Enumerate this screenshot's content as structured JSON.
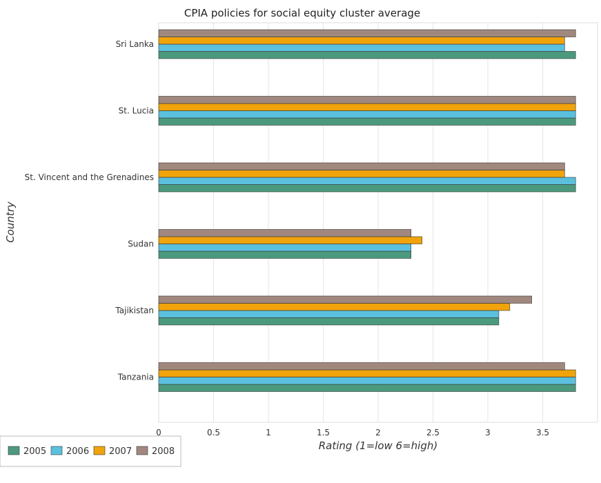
{
  "chart_data": {
    "type": "bar",
    "orientation": "horizontal",
    "title": "CPIA policies for social equity cluster average",
    "xlabel": "Rating (1=low 6=high)",
    "ylabel": "Country",
    "xlim": [
      0,
      4.0
    ],
    "xticks": [
      "0",
      "0.5",
      "1",
      "1.5",
      "2",
      "2.5",
      "3",
      "3.5"
    ],
    "categories": [
      "Sri Lanka",
      "St. Lucia",
      "St. Vincent and the Grenadines",
      "Sudan",
      "Tajikistan",
      "Tanzania"
    ],
    "series": [
      {
        "name": "2005",
        "color": "#4c9a7e",
        "values": [
          3.8,
          3.8,
          3.8,
          2.3,
          3.1,
          3.8
        ]
      },
      {
        "name": "2006",
        "color": "#5bc0de",
        "values": [
          3.7,
          3.8,
          3.8,
          2.3,
          3.1,
          3.8
        ]
      },
      {
        "name": "2007",
        "color": "#f0a30a",
        "values": [
          3.7,
          3.8,
          3.7,
          2.4,
          3.2,
          3.8
        ]
      },
      {
        "name": "2008",
        "color": "#a1887f",
        "values": [
          3.8,
          3.8,
          3.7,
          2.3,
          3.4,
          3.7
        ]
      }
    ],
    "grid": true,
    "legend_position": "bottom-left"
  }
}
